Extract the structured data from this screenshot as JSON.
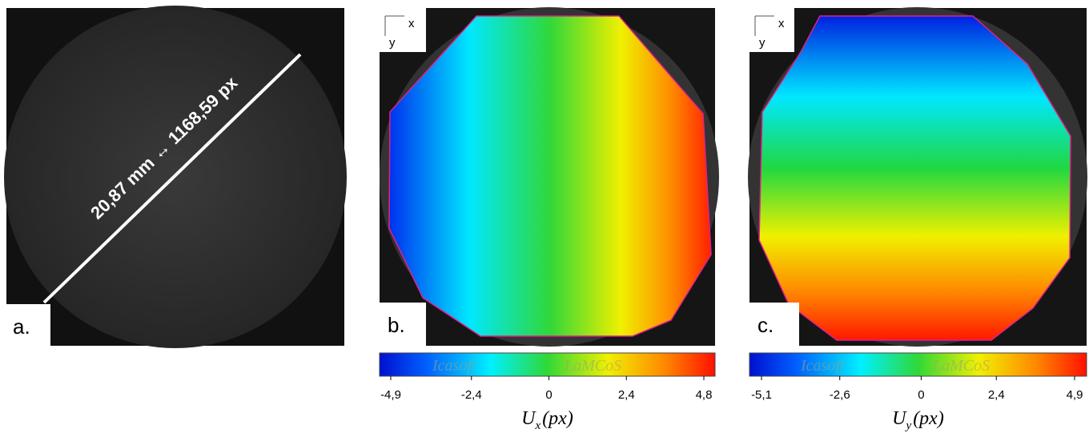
{
  "panels": [
    {
      "label": "a.",
      "annotation": "20,87 mm ↔ 1168,59 px"
    },
    {
      "label": "b.",
      "axes": [
        "x",
        "y"
      ],
      "colorbar": {
        "watermark": [
          "Icasoft",
          "LaMCoS"
        ],
        "lim": [
          -4.9,
          4.8
        ],
        "ticks": [
          {
            "value": -4.9,
            "label": "-4,9"
          },
          {
            "value": -2.4,
            "label": "-2,4"
          },
          0,
          {
            "value": 2.4,
            "label": "2,4"
          },
          {
            "value": 4.8,
            "label": "4,8"
          }
        ],
        "quantity": "U",
        "subscript": "x",
        "unit": "(px)"
      }
    },
    {
      "label": "c.",
      "axes": [
        "x",
        "y"
      ],
      "colorbar": {
        "watermark": [
          "Icasoft",
          "LaMCoS"
        ],
        "lim": [
          -5.1,
          4.9
        ],
        "ticks": [
          {
            "value": -5.1,
            "label": "-5,1"
          },
          {
            "value": -2.6,
            "label": "-2,6"
          },
          0,
          {
            "value": 2.4,
            "label": "2,4"
          },
          {
            "value": 4.9,
            "label": "4,9"
          }
        ],
        "quantity": "U",
        "subscript": "y",
        "unit": "(px)"
      }
    }
  ]
}
